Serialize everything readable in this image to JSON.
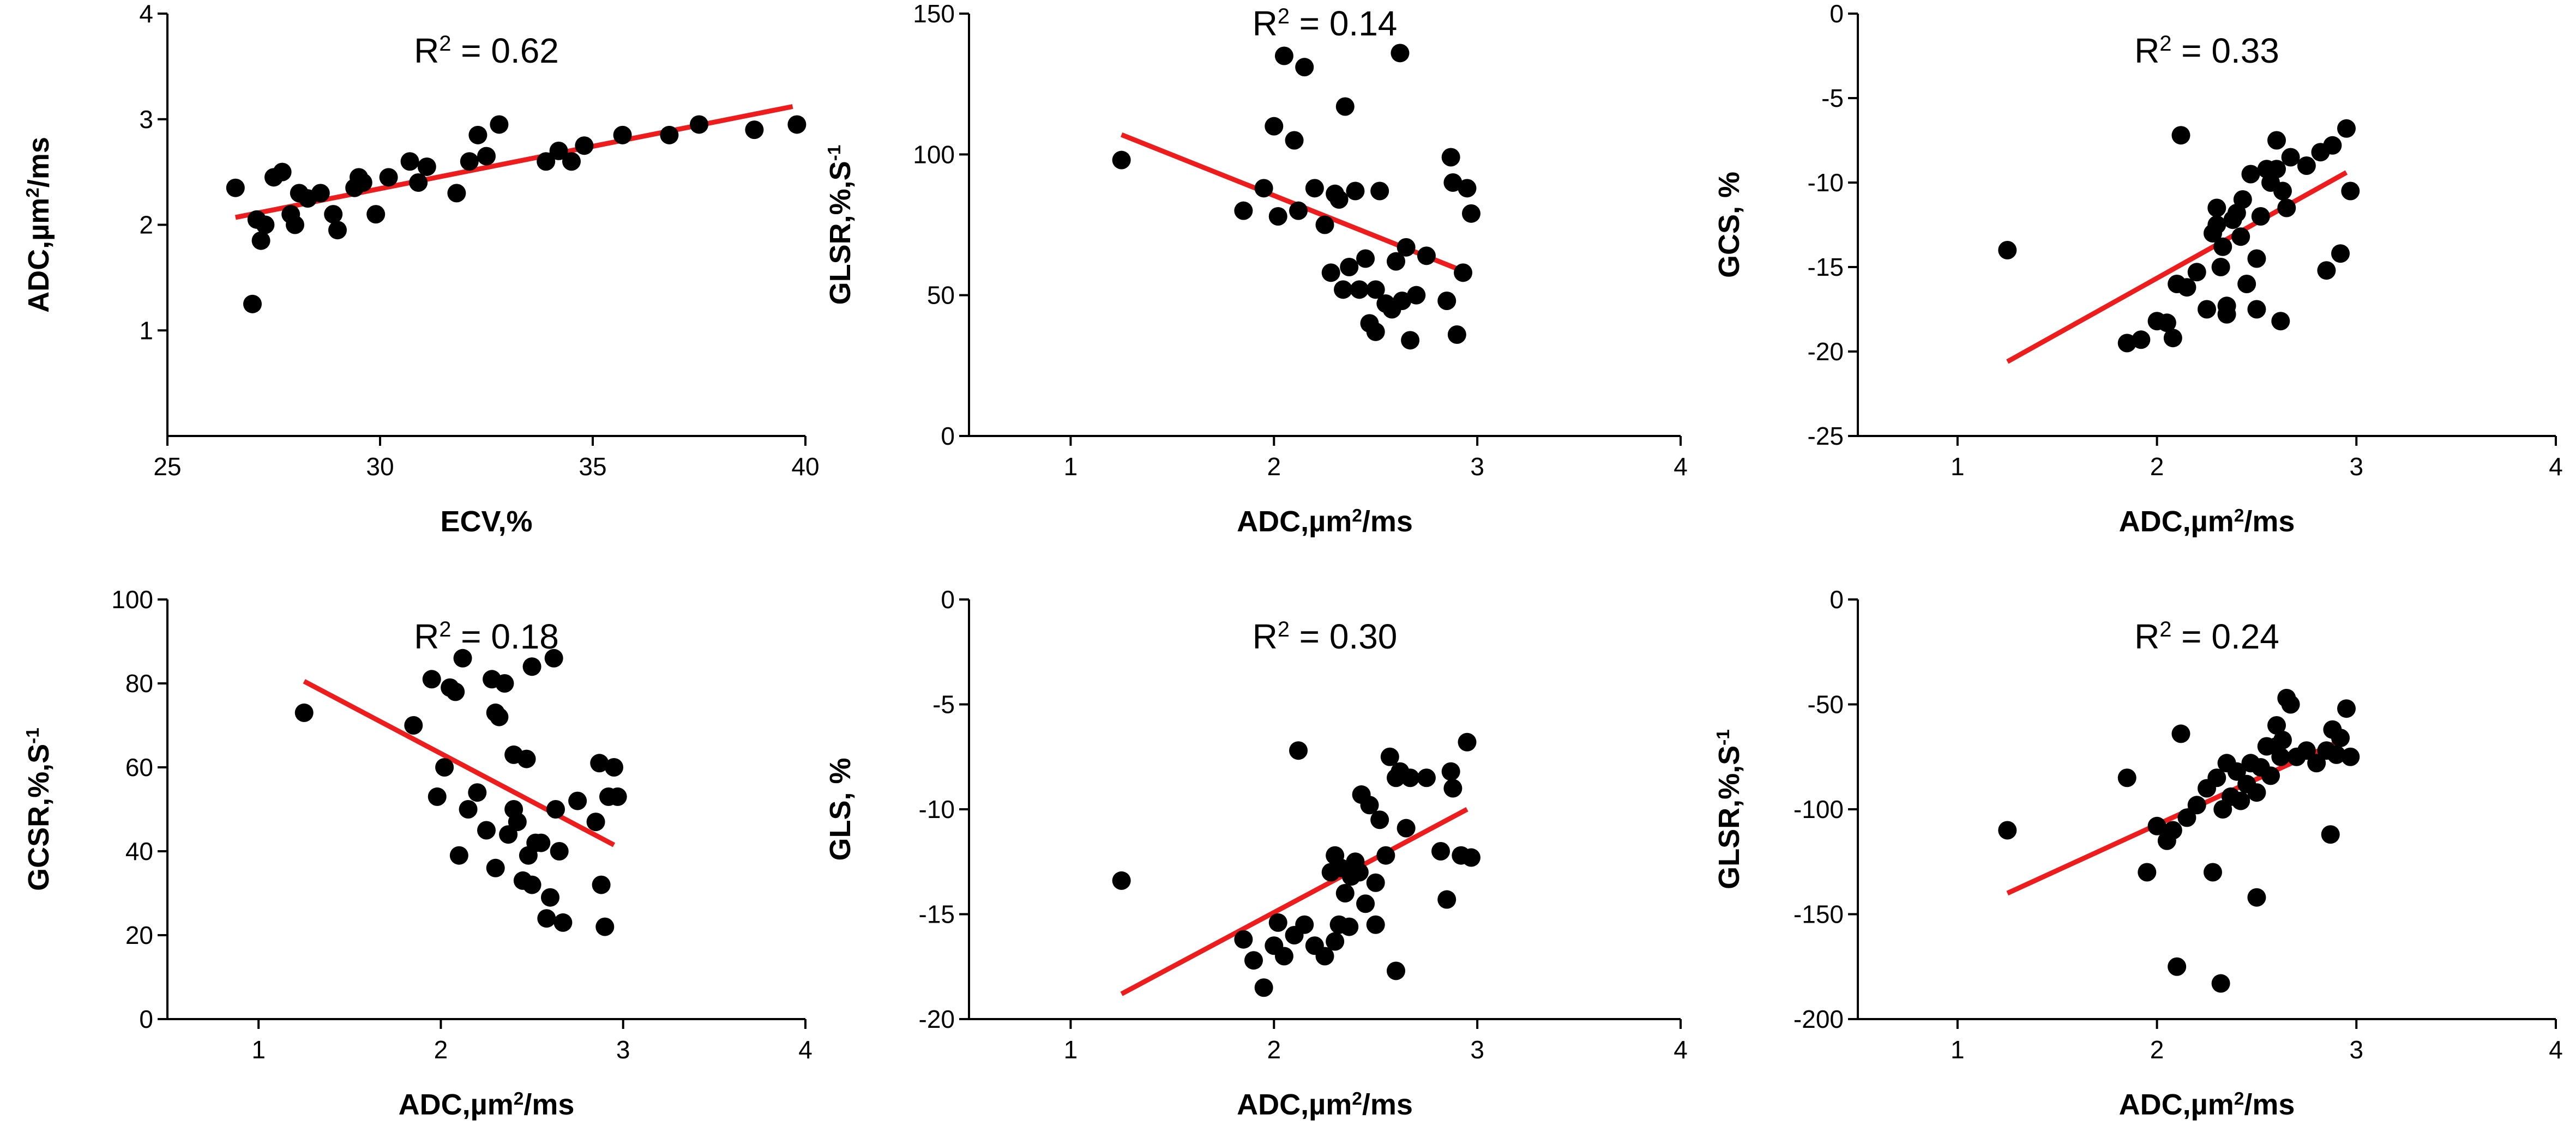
{
  "chart_data": [
    {
      "type": "scatter",
      "annotation": {
        "label": "R",
        "sup": "2",
        "value": " = 0.62"
      },
      "xlabel": {
        "main": "ECV,%",
        "sup": "",
        "tail": ""
      },
      "ylabel": {
        "main": "ADC,µm",
        "sup": "2",
        "tail": "/ms"
      },
      "xlim": [
        25,
        40
      ],
      "ylim": [
        0,
        4
      ],
      "xticks": [
        25,
        30,
        35,
        40
      ],
      "yticks": [
        1,
        2,
        3,
        4
      ],
      "points": [
        [
          26.6,
          2.35
        ],
        [
          27.0,
          1.25
        ],
        [
          27.1,
          2.05
        ],
        [
          27.2,
          1.85
        ],
        [
          27.3,
          2.0
        ],
        [
          27.5,
          2.45
        ],
        [
          27.7,
          2.5
        ],
        [
          27.9,
          2.1
        ],
        [
          28.0,
          2.0
        ],
        [
          28.1,
          2.3
        ],
        [
          28.3,
          2.25
        ],
        [
          28.6,
          2.3
        ],
        [
          28.9,
          2.1
        ],
        [
          29.0,
          1.95
        ],
        [
          29.4,
          2.35
        ],
        [
          29.5,
          2.45
        ],
        [
          29.6,
          2.4
        ],
        [
          29.9,
          2.1
        ],
        [
          30.2,
          2.45
        ],
        [
          30.7,
          2.6
        ],
        [
          30.9,
          2.4
        ],
        [
          31.1,
          2.55
        ],
        [
          31.8,
          2.3
        ],
        [
          32.1,
          2.6
        ],
        [
          32.3,
          2.85
        ],
        [
          32.5,
          2.65
        ],
        [
          32.8,
          2.95
        ],
        [
          33.9,
          2.6
        ],
        [
          34.2,
          2.7
        ],
        [
          34.5,
          2.6
        ],
        [
          34.8,
          2.75
        ],
        [
          35.7,
          2.85
        ],
        [
          36.8,
          2.85
        ],
        [
          37.5,
          2.95
        ],
        [
          38.8,
          2.9
        ],
        [
          39.8,
          2.95
        ]
      ],
      "fit": [
        [
          26.6,
          2.07
        ],
        [
          39.7,
          3.12
        ]
      ]
    },
    {
      "type": "scatter",
      "annotation": {
        "label": "R",
        "sup": "2",
        "value": " = 0.14"
      },
      "xlabel": {
        "main": "ADC,µm",
        "sup": "2",
        "tail": "/ms"
      },
      "ylabel": {
        "main": "GLSR,%,S",
        "sup": "-1",
        "tail": ""
      },
      "xlim": [
        0.5,
        4
      ],
      "ylim": [
        0,
        150
      ],
      "xticks": [
        1,
        2,
        3,
        4
      ],
      "yticks": [
        0,
        50,
        100,
        150
      ],
      "points": [
        [
          1.25,
          98
        ],
        [
          1.85,
          80
        ],
        [
          1.95,
          88
        ],
        [
          2.0,
          110
        ],
        [
          2.02,
          78
        ],
        [
          2.05,
          135
        ],
        [
          2.1,
          105
        ],
        [
          2.12,
          80
        ],
        [
          2.15,
          131
        ],
        [
          2.2,
          88
        ],
        [
          2.25,
          75
        ],
        [
          2.28,
          58
        ],
        [
          2.3,
          86
        ],
        [
          2.32,
          84
        ],
        [
          2.34,
          52
        ],
        [
          2.35,
          117
        ],
        [
          2.37,
          60
        ],
        [
          2.4,
          87
        ],
        [
          2.42,
          52
        ],
        [
          2.45,
          63
        ],
        [
          2.47,
          40
        ],
        [
          2.5,
          37
        ],
        [
          2.5,
          52
        ],
        [
          2.52,
          87
        ],
        [
          2.55,
          47
        ],
        [
          2.58,
          45
        ],
        [
          2.6,
          62
        ],
        [
          2.62,
          136
        ],
        [
          2.63,
          48
        ],
        [
          2.65,
          67
        ],
        [
          2.67,
          34
        ],
        [
          2.7,
          50
        ],
        [
          2.75,
          64
        ],
        [
          2.85,
          48
        ],
        [
          2.87,
          99
        ],
        [
          2.88,
          90
        ],
        [
          2.9,
          36
        ],
        [
          2.93,
          58
        ],
        [
          2.95,
          88
        ],
        [
          2.97,
          79
        ]
      ],
      "fit": [
        [
          1.25,
          107
        ],
        [
          2.95,
          58
        ]
      ]
    },
    {
      "type": "scatter",
      "annotation": {
        "label": "R",
        "sup": "2",
        "value": " = 0.33"
      },
      "xlabel": {
        "main": "ADC,µm",
        "sup": "2",
        "tail": "/ms"
      },
      "ylabel": {
        "main": "GCS, %",
        "sup": "",
        "tail": ""
      },
      "xlim": [
        0.5,
        4
      ],
      "ylim": [
        -25,
        0
      ],
      "xticks": [
        1,
        2,
        3,
        4
      ],
      "yticks": [
        -25,
        -20,
        -15,
        -10,
        -5,
        0
      ],
      "points": [
        [
          1.25,
          -14.0
        ],
        [
          1.85,
          -19.5
        ],
        [
          1.92,
          -19.3
        ],
        [
          2.0,
          -18.2
        ],
        [
          2.05,
          -18.3
        ],
        [
          2.08,
          -19.2
        ],
        [
          2.1,
          -16.0
        ],
        [
          2.12,
          -7.2
        ],
        [
          2.15,
          -16.2
        ],
        [
          2.2,
          -15.3
        ],
        [
          2.25,
          -17.5
        ],
        [
          2.28,
          -13.0
        ],
        [
          2.3,
          -11.5
        ],
        [
          2.3,
          -12.5
        ],
        [
          2.32,
          -15.0
        ],
        [
          2.33,
          -13.8
        ],
        [
          2.35,
          -17.3
        ],
        [
          2.35,
          -17.8
        ],
        [
          2.38,
          -12.2
        ],
        [
          2.4,
          -11.8
        ],
        [
          2.42,
          -13.2
        ],
        [
          2.43,
          -11.0
        ],
        [
          2.45,
          -16.0
        ],
        [
          2.47,
          -9.5
        ],
        [
          2.5,
          -17.5
        ],
        [
          2.5,
          -14.5
        ],
        [
          2.52,
          -12.0
        ],
        [
          2.55,
          -9.2
        ],
        [
          2.57,
          -10.0
        ],
        [
          2.6,
          -7.5
        ],
        [
          2.6,
          -9.2
        ],
        [
          2.62,
          -18.2
        ],
        [
          2.63,
          -10.5
        ],
        [
          2.65,
          -11.5
        ],
        [
          2.67,
          -8.5
        ],
        [
          2.75,
          -9.0
        ],
        [
          2.82,
          -8.2
        ],
        [
          2.85,
          -15.2
        ],
        [
          2.88,
          -7.8
        ],
        [
          2.92,
          -14.2
        ],
        [
          2.95,
          -6.8
        ],
        [
          2.97,
          -10.5
        ]
      ],
      "fit": [
        [
          1.25,
          -20.6
        ],
        [
          2.95,
          -9.4
        ]
      ]
    },
    {
      "type": "scatter",
      "annotation": {
        "label": "R",
        "sup": "2",
        "value": " = 0.18"
      },
      "xlabel": {
        "main": "ADC,µm",
        "sup": "2",
        "tail": "/ms"
      },
      "ylabel": {
        "main": "GCSR,%,S",
        "sup": "-1",
        "tail": ""
      },
      "xlim": [
        0.5,
        4
      ],
      "ylim": [
        0,
        100
      ],
      "xticks": [
        1,
        2,
        3,
        4
      ],
      "yticks": [
        0,
        20,
        40,
        60,
        80,
        100
      ],
      "points": [
        [
          1.25,
          73
        ],
        [
          1.85,
          70
        ],
        [
          1.95,
          81
        ],
        [
          1.98,
          53
        ],
        [
          2.02,
          60
        ],
        [
          2.05,
          79
        ],
        [
          2.08,
          78
        ],
        [
          2.1,
          39
        ],
        [
          2.12,
          86
        ],
        [
          2.15,
          50
        ],
        [
          2.2,
          54
        ],
        [
          2.25,
          45
        ],
        [
          2.28,
          81
        ],
        [
          2.3,
          73
        ],
        [
          2.3,
          36
        ],
        [
          2.32,
          72
        ],
        [
          2.35,
          80
        ],
        [
          2.37,
          44
        ],
        [
          2.4,
          50
        ],
        [
          2.4,
          63
        ],
        [
          2.42,
          47
        ],
        [
          2.45,
          33
        ],
        [
          2.47,
          62
        ],
        [
          2.48,
          39
        ],
        [
          2.5,
          32
        ],
        [
          2.5,
          84
        ],
        [
          2.52,
          42
        ],
        [
          2.55,
          42
        ],
        [
          2.58,
          24
        ],
        [
          2.6,
          29
        ],
        [
          2.62,
          86
        ],
        [
          2.63,
          50
        ],
        [
          2.65,
          40
        ],
        [
          2.67,
          23
        ],
        [
          2.75,
          52
        ],
        [
          2.85,
          47
        ],
        [
          2.87,
          61
        ],
        [
          2.88,
          32
        ],
        [
          2.9,
          22
        ],
        [
          2.92,
          53
        ],
        [
          2.95,
          60
        ],
        [
          2.97,
          53
        ]
      ],
      "fit": [
        [
          1.25,
          80.5
        ],
        [
          2.95,
          41.5
        ]
      ]
    },
    {
      "type": "scatter",
      "annotation": {
        "label": "R",
        "sup": "2",
        "value": " = 0.30"
      },
      "xlabel": {
        "main": "ADC,µm",
        "sup": "2",
        "tail": "/ms"
      },
      "ylabel": {
        "main": "GLS, %",
        "sup": "",
        "tail": ""
      },
      "xlim": [
        0.5,
        4
      ],
      "ylim": [
        -20,
        0
      ],
      "xticks": [
        1,
        2,
        3,
        4
      ],
      "yticks": [
        -20,
        -15,
        -10,
        -5,
        0
      ],
      "points": [
        [
          1.25,
          -13.4
        ],
        [
          1.85,
          -16.2
        ],
        [
          1.9,
          -17.2
        ],
        [
          1.95,
          -18.5
        ],
        [
          2.0,
          -16.5
        ],
        [
          2.02,
          -15.4
        ],
        [
          2.05,
          -17.0
        ],
        [
          2.1,
          -16.0
        ],
        [
          2.12,
          -7.2
        ],
        [
          2.15,
          -15.5
        ],
        [
          2.2,
          -16.5
        ],
        [
          2.25,
          -17.0
        ],
        [
          2.28,
          -13.0
        ],
        [
          2.3,
          -12.2
        ],
        [
          2.3,
          -16.3
        ],
        [
          2.32,
          -15.5
        ],
        [
          2.33,
          -12.8
        ],
        [
          2.35,
          -14.0
        ],
        [
          2.37,
          -15.6
        ],
        [
          2.38,
          -13.2
        ],
        [
          2.4,
          -12.5
        ],
        [
          2.42,
          -13.0
        ],
        [
          2.43,
          -9.3
        ],
        [
          2.45,
          -14.5
        ],
        [
          2.47,
          -9.8
        ],
        [
          2.5,
          -15.5
        ],
        [
          2.5,
          -13.5
        ],
        [
          2.52,
          -10.5
        ],
        [
          2.55,
          -12.2
        ],
        [
          2.57,
          -7.5
        ],
        [
          2.6,
          -8.5
        ],
        [
          2.6,
          -17.7
        ],
        [
          2.62,
          -8.2
        ],
        [
          2.65,
          -10.9
        ],
        [
          2.67,
          -8.5
        ],
        [
          2.75,
          -8.5
        ],
        [
          2.82,
          -12.0
        ],
        [
          2.85,
          -14.3
        ],
        [
          2.87,
          -8.2
        ],
        [
          2.88,
          -9.0
        ],
        [
          2.92,
          -12.2
        ],
        [
          2.95,
          -6.8
        ],
        [
          2.97,
          -12.3
        ]
      ],
      "fit": [
        [
          1.25,
          -18.8
        ],
        [
          2.95,
          -10.0
        ]
      ]
    },
    {
      "type": "scatter",
      "annotation": {
        "label": "R",
        "sup": "2",
        "value": " = 0.24"
      },
      "xlabel": {
        "main": "ADC,µm",
        "sup": "2",
        "tail": "/ms"
      },
      "ylabel": {
        "main": "GLSR,%,S",
        "sup": "-1",
        "tail": ""
      },
      "xlim": [
        0.5,
        4
      ],
      "ylim": [
        -200,
        0
      ],
      "xticks": [
        1,
        2,
        3,
        4
      ],
      "yticks": [
        -200,
        -150,
        -100,
        -50,
        0
      ],
      "points": [
        [
          1.25,
          -110
        ],
        [
          1.85,
          -85
        ],
        [
          1.95,
          -130
        ],
        [
          2.0,
          -108
        ],
        [
          2.05,
          -115
        ],
        [
          2.08,
          -110
        ],
        [
          2.1,
          -175
        ],
        [
          2.12,
          -64
        ],
        [
          2.15,
          -104
        ],
        [
          2.2,
          -98
        ],
        [
          2.25,
          -90
        ],
        [
          2.28,
          -130
        ],
        [
          2.3,
          -85
        ],
        [
          2.32,
          -183
        ],
        [
          2.33,
          -100
        ],
        [
          2.35,
          -78
        ],
        [
          2.37,
          -94
        ],
        [
          2.4,
          -82
        ],
        [
          2.42,
          -96
        ],
        [
          2.45,
          -88
        ],
        [
          2.47,
          -78
        ],
        [
          2.5,
          -142
        ],
        [
          2.5,
          -92
        ],
        [
          2.52,
          -80
        ],
        [
          2.55,
          -70
        ],
        [
          2.57,
          -84
        ],
        [
          2.6,
          -60
        ],
        [
          2.6,
          -70
        ],
        [
          2.62,
          -75
        ],
        [
          2.63,
          -67
        ],
        [
          2.65,
          -47
        ],
        [
          2.67,
          -50
        ],
        [
          2.7,
          -75
        ],
        [
          2.75,
          -72
        ],
        [
          2.8,
          -78
        ],
        [
          2.85,
          -72
        ],
        [
          2.87,
          -112
        ],
        [
          2.88,
          -62
        ],
        [
          2.9,
          -74
        ],
        [
          2.92,
          -66
        ],
        [
          2.95,
          -52
        ],
        [
          2.97,
          -75
        ]
      ],
      "fit": [
        [
          1.25,
          -140
        ],
        [
          2.95,
          -66
        ]
      ]
    }
  ]
}
